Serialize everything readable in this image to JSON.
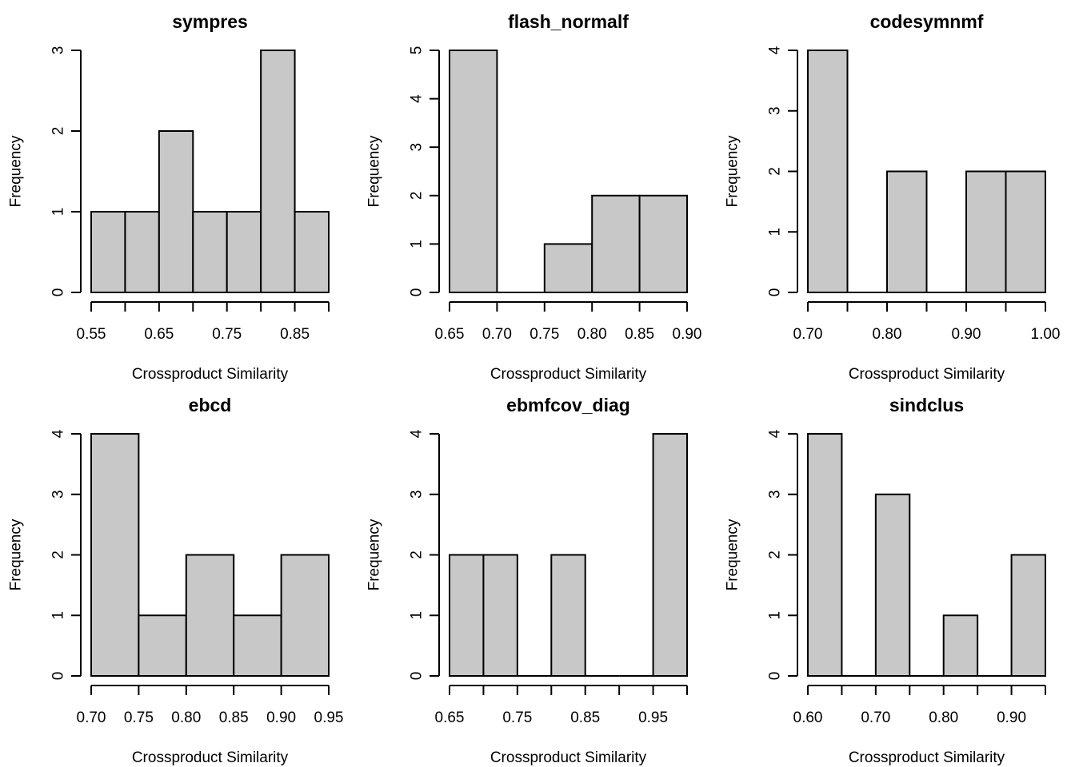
{
  "chart_data": [
    {
      "type": "bar",
      "title": "sympres",
      "xlabel": "Crossproduct Similarity",
      "ylabel": "Frequency",
      "bin_edges": [
        0.55,
        0.6,
        0.65,
        0.7,
        0.75,
        0.8,
        0.85,
        0.9
      ],
      "values": [
        1,
        1,
        2,
        1,
        1,
        3,
        1
      ],
      "xlim": [
        0.55,
        0.9
      ],
      "ylim": [
        0,
        3
      ],
      "xticks": [
        0.55,
        0.6,
        0.65,
        0.7,
        0.75,
        0.8,
        0.85,
        0.9
      ],
      "xtick_labels": [
        "0.55",
        "",
        "0.65",
        "",
        "0.75",
        "",
        "0.85",
        ""
      ],
      "yticks": [
        0,
        1,
        2,
        3
      ],
      "ytick_labels": [
        "0",
        "1",
        "2",
        "3"
      ]
    },
    {
      "type": "bar",
      "title": "flash_normalf",
      "xlabel": "Crossproduct Similarity",
      "ylabel": "Frequency",
      "bin_edges": [
        0.65,
        0.7,
        0.75,
        0.8,
        0.85,
        0.9
      ],
      "values": [
        5,
        0,
        1,
        2,
        2
      ],
      "xlim": [
        0.65,
        0.9
      ],
      "ylim": [
        0,
        5
      ],
      "xticks": [
        0.65,
        0.7,
        0.75,
        0.8,
        0.85,
        0.9
      ],
      "xtick_labels": [
        "0.65",
        "0.70",
        "0.75",
        "0.80",
        "0.85",
        "0.90"
      ],
      "yticks": [
        0,
        1,
        2,
        3,
        4,
        5
      ],
      "ytick_labels": [
        "0",
        "1",
        "2",
        "3",
        "4",
        "5"
      ]
    },
    {
      "type": "bar",
      "title": "codesymnmf",
      "xlabel": "Crossproduct Similarity",
      "ylabel": "Frequency",
      "bin_edges": [
        0.7,
        0.75,
        0.8,
        0.85,
        0.9,
        0.95,
        1.0
      ],
      "values": [
        4,
        0,
        2,
        0,
        2,
        2
      ],
      "xlim": [
        0.7,
        1.0
      ],
      "ylim": [
        0,
        4
      ],
      "xticks": [
        0.7,
        0.75,
        0.8,
        0.85,
        0.9,
        0.95,
        1.0
      ],
      "xtick_labels": [
        "0.70",
        "",
        "0.80",
        "",
        "0.90",
        "",
        "1.00"
      ],
      "yticks": [
        0,
        1,
        2,
        3,
        4
      ],
      "ytick_labels": [
        "0",
        "1",
        "2",
        "3",
        "4"
      ]
    },
    {
      "type": "bar",
      "title": "ebcd",
      "xlabel": "Crossproduct Similarity",
      "ylabel": "Frequency",
      "bin_edges": [
        0.7,
        0.75,
        0.8,
        0.85,
        0.9,
        0.95
      ],
      "values": [
        4,
        1,
        2,
        1,
        2
      ],
      "xlim": [
        0.7,
        0.95
      ],
      "ylim": [
        0,
        4
      ],
      "xticks": [
        0.7,
        0.75,
        0.8,
        0.85,
        0.9,
        0.95
      ],
      "xtick_labels": [
        "0.70",
        "0.75",
        "0.80",
        "0.85",
        "0.90",
        "0.95"
      ],
      "yticks": [
        0,
        1,
        2,
        3,
        4
      ],
      "ytick_labels": [
        "0",
        "1",
        "2",
        "3",
        "4"
      ]
    },
    {
      "type": "bar",
      "title": "ebmfcov_diag",
      "xlabel": "Crossproduct Similarity",
      "ylabel": "Frequency",
      "bin_edges": [
        0.65,
        0.7,
        0.75,
        0.8,
        0.85,
        0.9,
        0.95,
        1.0
      ],
      "values": [
        2,
        2,
        0,
        2,
        0,
        0,
        4
      ],
      "xlim": [
        0.65,
        1.0
      ],
      "ylim": [
        0,
        4
      ],
      "xticks": [
        0.65,
        0.7,
        0.75,
        0.8,
        0.85,
        0.9,
        0.95,
        1.0
      ],
      "xtick_labels": [
        "0.65",
        "",
        "0.75",
        "",
        "0.85",
        "",
        "0.95",
        ""
      ],
      "yticks": [
        0,
        1,
        2,
        3,
        4
      ],
      "ytick_labels": [
        "0",
        "1",
        "2",
        "3",
        "4"
      ]
    },
    {
      "type": "bar",
      "title": "sindclus",
      "xlabel": "Crossproduct Similarity",
      "ylabel": "Frequency",
      "bin_edges": [
        0.6,
        0.65,
        0.7,
        0.75,
        0.8,
        0.85,
        0.9,
        0.95
      ],
      "values": [
        4,
        0,
        3,
        0,
        1,
        0,
        2
      ],
      "xlim": [
        0.6,
        0.95
      ],
      "ylim": [
        0,
        4
      ],
      "xticks": [
        0.6,
        0.65,
        0.7,
        0.75,
        0.8,
        0.85,
        0.9,
        0.95
      ],
      "xtick_labels": [
        "0.60",
        "",
        "0.70",
        "",
        "0.80",
        "",
        "0.90",
        ""
      ],
      "yticks": [
        0,
        1,
        2,
        3,
        4
      ],
      "ytick_labels": [
        "0",
        "1",
        "2",
        "3",
        "4"
      ]
    }
  ],
  "colors": {
    "bar_fill": "#c8c8c8",
    "stroke": "#000000",
    "background": "#ffffff"
  }
}
